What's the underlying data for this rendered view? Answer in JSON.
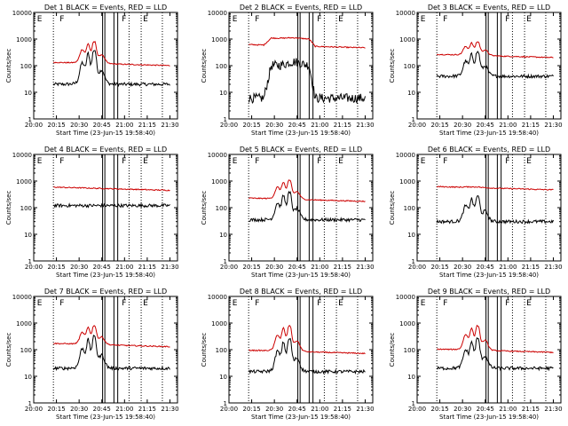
{
  "figure_common": {
    "title_suffix": "BLACK = Events, RED = LLD",
    "xlabel": "Start Time (23-Jun-15 19:58:40)",
    "ylabel": "Counts/sec",
    "x_ticks": [
      "20:00",
      "20:15",
      "20:30",
      "20:45",
      "21:00",
      "21:15",
      "21:30"
    ],
    "y_ticks": [
      "1",
      "10",
      "100",
      "1000",
      "10000"
    ]
  },
  "chart_data": [
    {
      "type": "line",
      "title": "Det 1",
      "profile": "flare",
      "markers": [
        "E",
        "F",
        "F",
        "E"
      ],
      "series": [
        {
          "name": "Events",
          "color": "#000000",
          "baseline": 20,
          "peak": 380
        },
        {
          "name": "LLD",
          "color": "#cc0000",
          "baseline": 140,
          "peak": 900
        }
      ],
      "ylim": [
        1,
        10000
      ],
      "xlim": [
        "20:00",
        "21:35"
      ]
    },
    {
      "type": "line",
      "title": "Det 2",
      "profile": "saturated",
      "markers": [
        "E",
        "F",
        "F",
        "E"
      ],
      "series": [
        {
          "name": "Events",
          "color": "#000000",
          "baseline": 6,
          "peak": 140
        },
        {
          "name": "LLD",
          "color": "#cc0000",
          "baseline": 650,
          "peak": 1300
        }
      ],
      "ylim": [
        1,
        10000
      ],
      "xlim": [
        "20:00",
        "21:35"
      ]
    },
    {
      "type": "line",
      "title": "Det 3",
      "profile": "flare",
      "markers": [
        "E",
        "F",
        "F",
        "E"
      ],
      "series": [
        {
          "name": "Events",
          "color": "#000000",
          "baseline": 40,
          "peak": 320
        },
        {
          "name": "LLD",
          "color": "#cc0000",
          "baseline": 280,
          "peak": 900
        }
      ],
      "ylim": [
        1,
        10000
      ],
      "xlim": [
        "20:00",
        "21:35"
      ]
    },
    {
      "type": "line",
      "title": "Det 4",
      "profile": "flat",
      "markers": [
        "E",
        "F",
        "F",
        "E"
      ],
      "series": [
        {
          "name": "Events",
          "color": "#000000",
          "baseline": 120,
          "peak": 120
        },
        {
          "name": "LLD",
          "color": "#cc0000",
          "baseline": 620,
          "peak": 700
        }
      ],
      "ylim": [
        1,
        10000
      ],
      "xlim": [
        "20:00",
        "21:35"
      ]
    },
    {
      "type": "line",
      "title": "Det 5",
      "profile": "flare",
      "markers": [
        "E",
        "F",
        "F",
        "E"
      ],
      "series": [
        {
          "name": "Events",
          "color": "#000000",
          "baseline": 35,
          "peak": 350
        },
        {
          "name": "LLD",
          "color": "#cc0000",
          "baseline": 240,
          "peak": 1200
        }
      ],
      "ylim": [
        1,
        10000
      ],
      "xlim": [
        "20:00",
        "21:35"
      ]
    },
    {
      "type": "line",
      "title": "Det 6",
      "profile": "flare",
      "markers": [
        "E",
        "F",
        "F",
        "E"
      ],
      "series": [
        {
          "name": "Events",
          "color": "#000000",
          "baseline": 30,
          "peak": 260
        },
        {
          "name": "LLD",
          "color": "#cc0000",
          "baseline": 650,
          "peak": 700
        }
      ],
      "ylim": [
        1,
        10000
      ],
      "xlim": [
        "20:00",
        "21:35"
      ]
    },
    {
      "type": "line",
      "title": "Det 7",
      "profile": "flare",
      "markers": [
        "E",
        "F",
        "F",
        "E"
      ],
      "series": [
        {
          "name": "Events",
          "color": "#000000",
          "baseline": 20,
          "peak": 300
        },
        {
          "name": "LLD",
          "color": "#cc0000",
          "baseline": 180,
          "peak": 900
        }
      ],
      "ylim": [
        1,
        10000
      ],
      "xlim": [
        "20:00",
        "21:35"
      ]
    },
    {
      "type": "line",
      "title": "Det 8",
      "profile": "flare",
      "markers": [
        "E",
        "F",
        "F",
        "E"
      ],
      "series": [
        {
          "name": "Events",
          "color": "#000000",
          "baseline": 15,
          "peak": 250
        },
        {
          "name": "LLD",
          "color": "#cc0000",
          "baseline": 100,
          "peak": 900
        }
      ],
      "ylim": [
        1,
        10000
      ],
      "xlim": [
        "20:00",
        "21:35"
      ]
    },
    {
      "type": "line",
      "title": "Det 9",
      "profile": "flare",
      "markers": [
        "E",
        "F",
        "F",
        "E"
      ],
      "series": [
        {
          "name": "Events",
          "color": "#000000",
          "baseline": 20,
          "peak": 250
        },
        {
          "name": "LLD",
          "color": "#cc0000",
          "baseline": 110,
          "peak": 900
        }
      ],
      "ylim": [
        1,
        10000
      ],
      "xlim": [
        "20:00",
        "21:35"
      ]
    }
  ]
}
